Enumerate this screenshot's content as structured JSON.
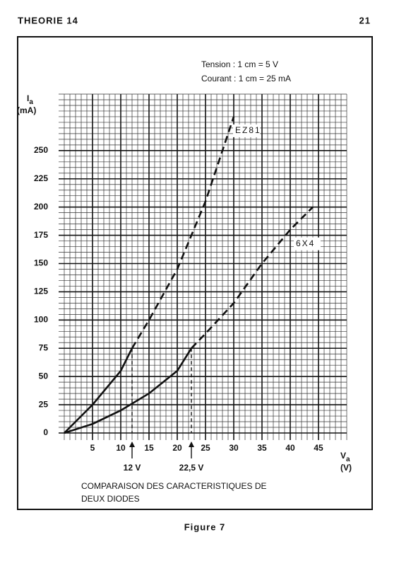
{
  "header": {
    "left": "THEORIE 14",
    "right": "21"
  },
  "footer": "Figure 7",
  "chart_data": {
    "type": "line",
    "annotations": [
      "Tension : 1 cm = 5 V",
      "Courant : 1 cm = 25 mA"
    ],
    "caption": [
      "COMPARAISON DES CARACTERISTIQUES DE",
      "DEUX DIODES"
    ],
    "y_label": {
      "symbol": "I",
      "subscript": "a",
      "unit": "(mA)"
    },
    "x_label": {
      "symbol": "V",
      "subscript": "a",
      "unit": "(V)"
    },
    "xlim": [
      0,
      50
    ],
    "ylim": [
      0,
      300
    ],
    "xticks": [
      5,
      10,
      15,
      20,
      25,
      30,
      35,
      40,
      45
    ],
    "yticks": [
      0,
      25,
      50,
      75,
      100,
      125,
      150,
      175,
      200,
      225,
      250
    ],
    "grid": true,
    "minor_grid": {
      "x": 1,
      "y": 5
    },
    "color": "#111111",
    "reference_y": 75,
    "markers": [
      {
        "x": 12,
        "label": "12 V"
      },
      {
        "x": 22.5,
        "label": "22,5 V"
      }
    ],
    "series": [
      {
        "name": "EZ81",
        "solid_until": 12,
        "x": [
          0,
          5,
          10,
          12,
          15,
          20,
          25,
          30
        ],
        "values": [
          0,
          25,
          55,
          75,
          100,
          145,
          205,
          280
        ]
      },
      {
        "name": "6X4",
        "solid_until": 22.5,
        "x": [
          0,
          5,
          10,
          15,
          20,
          22.5,
          25,
          30,
          35,
          40,
          44
        ],
        "values": [
          0,
          8,
          20,
          35,
          55,
          75,
          88,
          115,
          150,
          180,
          200
        ]
      }
    ]
  }
}
